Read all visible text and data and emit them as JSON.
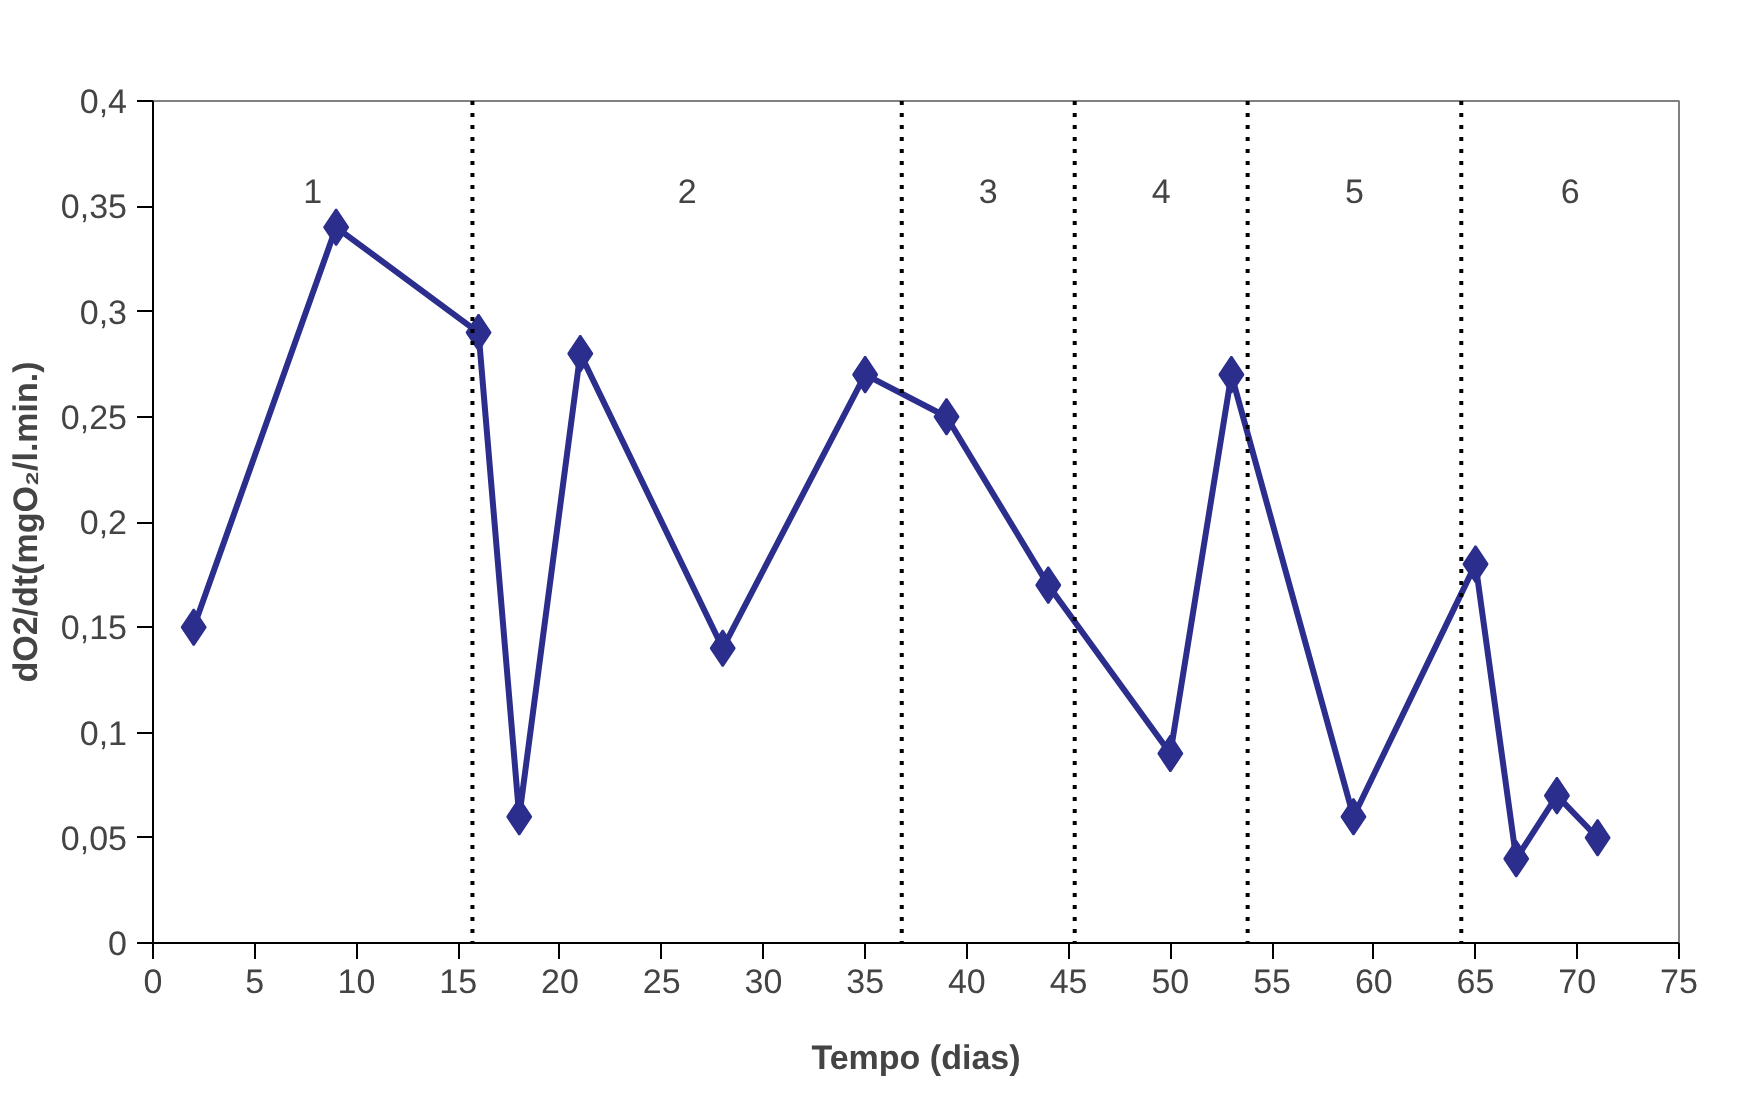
{
  "chart_data": {
    "type": "line",
    "xlabel": "Tempo (dias)",
    "ylabel": "dO2/dt(mgO₂/l.min.)",
    "x": [
      2,
      9,
      16,
      18,
      21,
      28,
      35,
      39,
      44,
      50,
      53,
      59,
      65,
      67,
      69,
      71
    ],
    "series": [
      {
        "color": "#2b2e8c",
        "values": [
          0.15,
          0.34,
          0.29,
          0.06,
          0.28,
          0.14,
          0.27,
          0.25,
          0.17,
          0.09,
          0.27,
          0.06,
          0.18,
          0.04,
          0.07,
          0.05
        ]
      }
    ],
    "xlim": [
      0,
      75
    ],
    "xticks": [
      0,
      5,
      10,
      15,
      20,
      25,
      30,
      35,
      40,
      45,
      50,
      55,
      60,
      65,
      70,
      75
    ],
    "ylim": [
      0,
      0.4
    ],
    "yticks": [
      {
        "value": 0,
        "label": "0"
      },
      {
        "value": 0.05,
        "label": "0,05"
      },
      {
        "value": 0.1,
        "label": "0,1"
      },
      {
        "value": 0.15,
        "label": "0,15"
      },
      {
        "value": 0.2,
        "label": "0,2"
      },
      {
        "value": 0.25,
        "label": "0,25"
      },
      {
        "value": 0.3,
        "label": "0,3"
      },
      {
        "value": 0.35,
        "label": "0,35"
      },
      {
        "value": 0.4,
        "label": "0,4"
      }
    ],
    "ref_lines": [
      {
        "axis": "x",
        "value": 15.7,
        "color": "#000000",
        "line_style": "dotted"
      },
      {
        "axis": "x",
        "value": 36.8,
        "color": "#000000",
        "line_style": "dotted"
      },
      {
        "axis": "x",
        "value": 45.3,
        "color": "#000000",
        "line_style": "dotted"
      },
      {
        "axis": "x",
        "value": 53.8,
        "color": "#000000",
        "line_style": "dotted"
      },
      {
        "axis": "x",
        "value": 64.3,
        "color": "#000000",
        "line_style": "dotted"
      }
    ],
    "annotations": [
      "1",
      "2",
      "3",
      "4",
      "5",
      "6"
    ],
    "marker": "diamond",
    "line_style": "solid",
    "grid": false
  }
}
